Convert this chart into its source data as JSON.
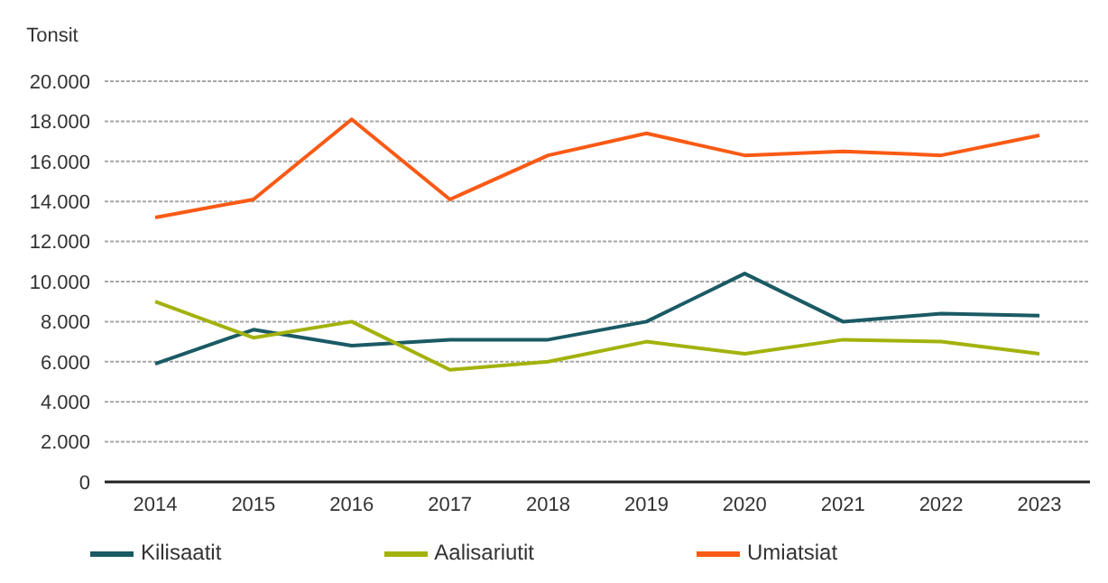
{
  "chart_data": {
    "type": "line",
    "ylabel": "Tonsit",
    "categories": [
      "2014",
      "2015",
      "2016",
      "2017",
      "2018",
      "2019",
      "2020",
      "2021",
      "2022",
      "2023"
    ],
    "series": [
      {
        "name": "Kilisaatit",
        "color": "#1a5a64",
        "values": [
          5900,
          7600,
          6800,
          7100,
          7100,
          8000,
          10400,
          8000,
          8400,
          8300
        ]
      },
      {
        "name": "Aalisariutit",
        "color": "#a3b20c",
        "values": [
          9000,
          7200,
          8000,
          5600,
          6000,
          7000,
          6400,
          7100,
          7000,
          6400
        ]
      },
      {
        "name": "Umiatsiat",
        "color": "#fa5a14",
        "values": [
          13200,
          14100,
          18100,
          14100,
          16300,
          17400,
          16300,
          16500,
          16300,
          17300
        ]
      }
    ],
    "ylim": [
      0,
      20000
    ],
    "yticks": [
      {
        "value": 0,
        "label": "0"
      },
      {
        "value": 2000,
        "label": "2.000"
      },
      {
        "value": 4000,
        "label": "4.000"
      },
      {
        "value": 6000,
        "label": "6.000"
      },
      {
        "value": 8000,
        "label": "8.000"
      },
      {
        "value": 10000,
        "label": "10.000"
      },
      {
        "value": 12000,
        "label": "12.000"
      },
      {
        "value": 14000,
        "label": "14.000"
      },
      {
        "value": 16000,
        "label": "16.000"
      },
      {
        "value": 18000,
        "label": "18.000"
      },
      {
        "value": 20000,
        "label": "20.000"
      }
    ],
    "grid": "y",
    "legend": "bottom",
    "marker": "none",
    "line_style": "solid"
  }
}
